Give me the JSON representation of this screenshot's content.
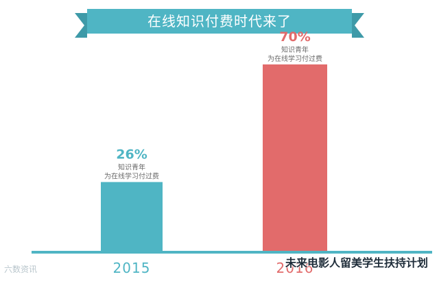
{
  "chart_data": {
    "type": "bar",
    "title": "在线知识付费时代来了",
    "categories": [
      "2015",
      "2016"
    ],
    "series": [
      {
        "values": [
          26,
          70
        ]
      }
    ],
    "data_labels": [
      "26%",
      "70%"
    ],
    "bar_annotations": [
      [
        "知识青年",
        "为在线学习付过费"
      ],
      [
        "知识青年",
        "为在线学习付过费"
      ]
    ],
    "ylim": [
      0,
      80
    ],
    "grid": false,
    "legend": "none",
    "colors": {
      "bars": [
        "#4fb5c4",
        "#e26b6b"
      ],
      "labels": [
        "#4fb5c4",
        "#e26b6b"
      ],
      "banner": "#4fb5c4",
      "banner_text": "#ffffff",
      "baseline": "#4fb5c4",
      "annotation_text": "#6b6b6b"
    }
  },
  "watermarks": {
    "left": "六数资讯",
    "right": "未来电影人留美学生扶持计划"
  }
}
